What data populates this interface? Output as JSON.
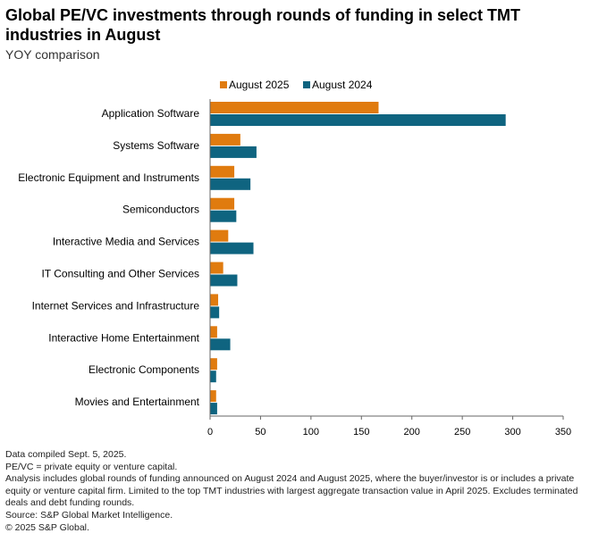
{
  "title": "Global PE/VC investments through rounds of funding in select TMT industries in August",
  "subtitle": "YOY comparison",
  "colors": {
    "august_2025": "#e07b0f",
    "august_2024": "#0f6480",
    "axis": "#666666"
  },
  "chart_data": {
    "type": "bar",
    "orientation": "horizontal",
    "categories": [
      "Application Software",
      "Systems Software",
      "Electronic Equipment and Instruments",
      "Semiconductors",
      "Interactive Media and Services",
      "IT Consulting and Other Services",
      "Internet Services and Infrastructure",
      "Interactive Home Entertainment",
      "Electronic Components",
      "Movies and Entertainment"
    ],
    "series": [
      {
        "name": "August 2025",
        "color": "#e07b0f",
        "values": [
          167,
          30,
          24,
          24,
          18,
          13,
          8,
          7,
          7,
          6
        ]
      },
      {
        "name": "August 2024",
        "color": "#0f6480",
        "values": [
          293,
          46,
          40,
          26,
          43,
          27,
          9,
          20,
          6,
          7
        ]
      }
    ],
    "xlim": [
      0,
      350
    ],
    "xticks": [
      "0",
      "50",
      "100",
      "150",
      "200",
      "250",
      "300",
      "350"
    ],
    "legend_position": "top",
    "grid": false
  },
  "notes": [
    "Data compiled Sept. 5, 2025.",
    "PE/VC = private equity or venture capital.",
    "Analysis includes global rounds of funding announced on August 2024 and August 2025, where the buyer/investor is or includes a private equity or venture capital firm. Limited to the top TMT industries with largest aggregate transaction value in April 2025. Excludes terminated deals and debt funding rounds.",
    "Source: S&P Global Market Intelligence.",
    "© 2025 S&P Global."
  ]
}
